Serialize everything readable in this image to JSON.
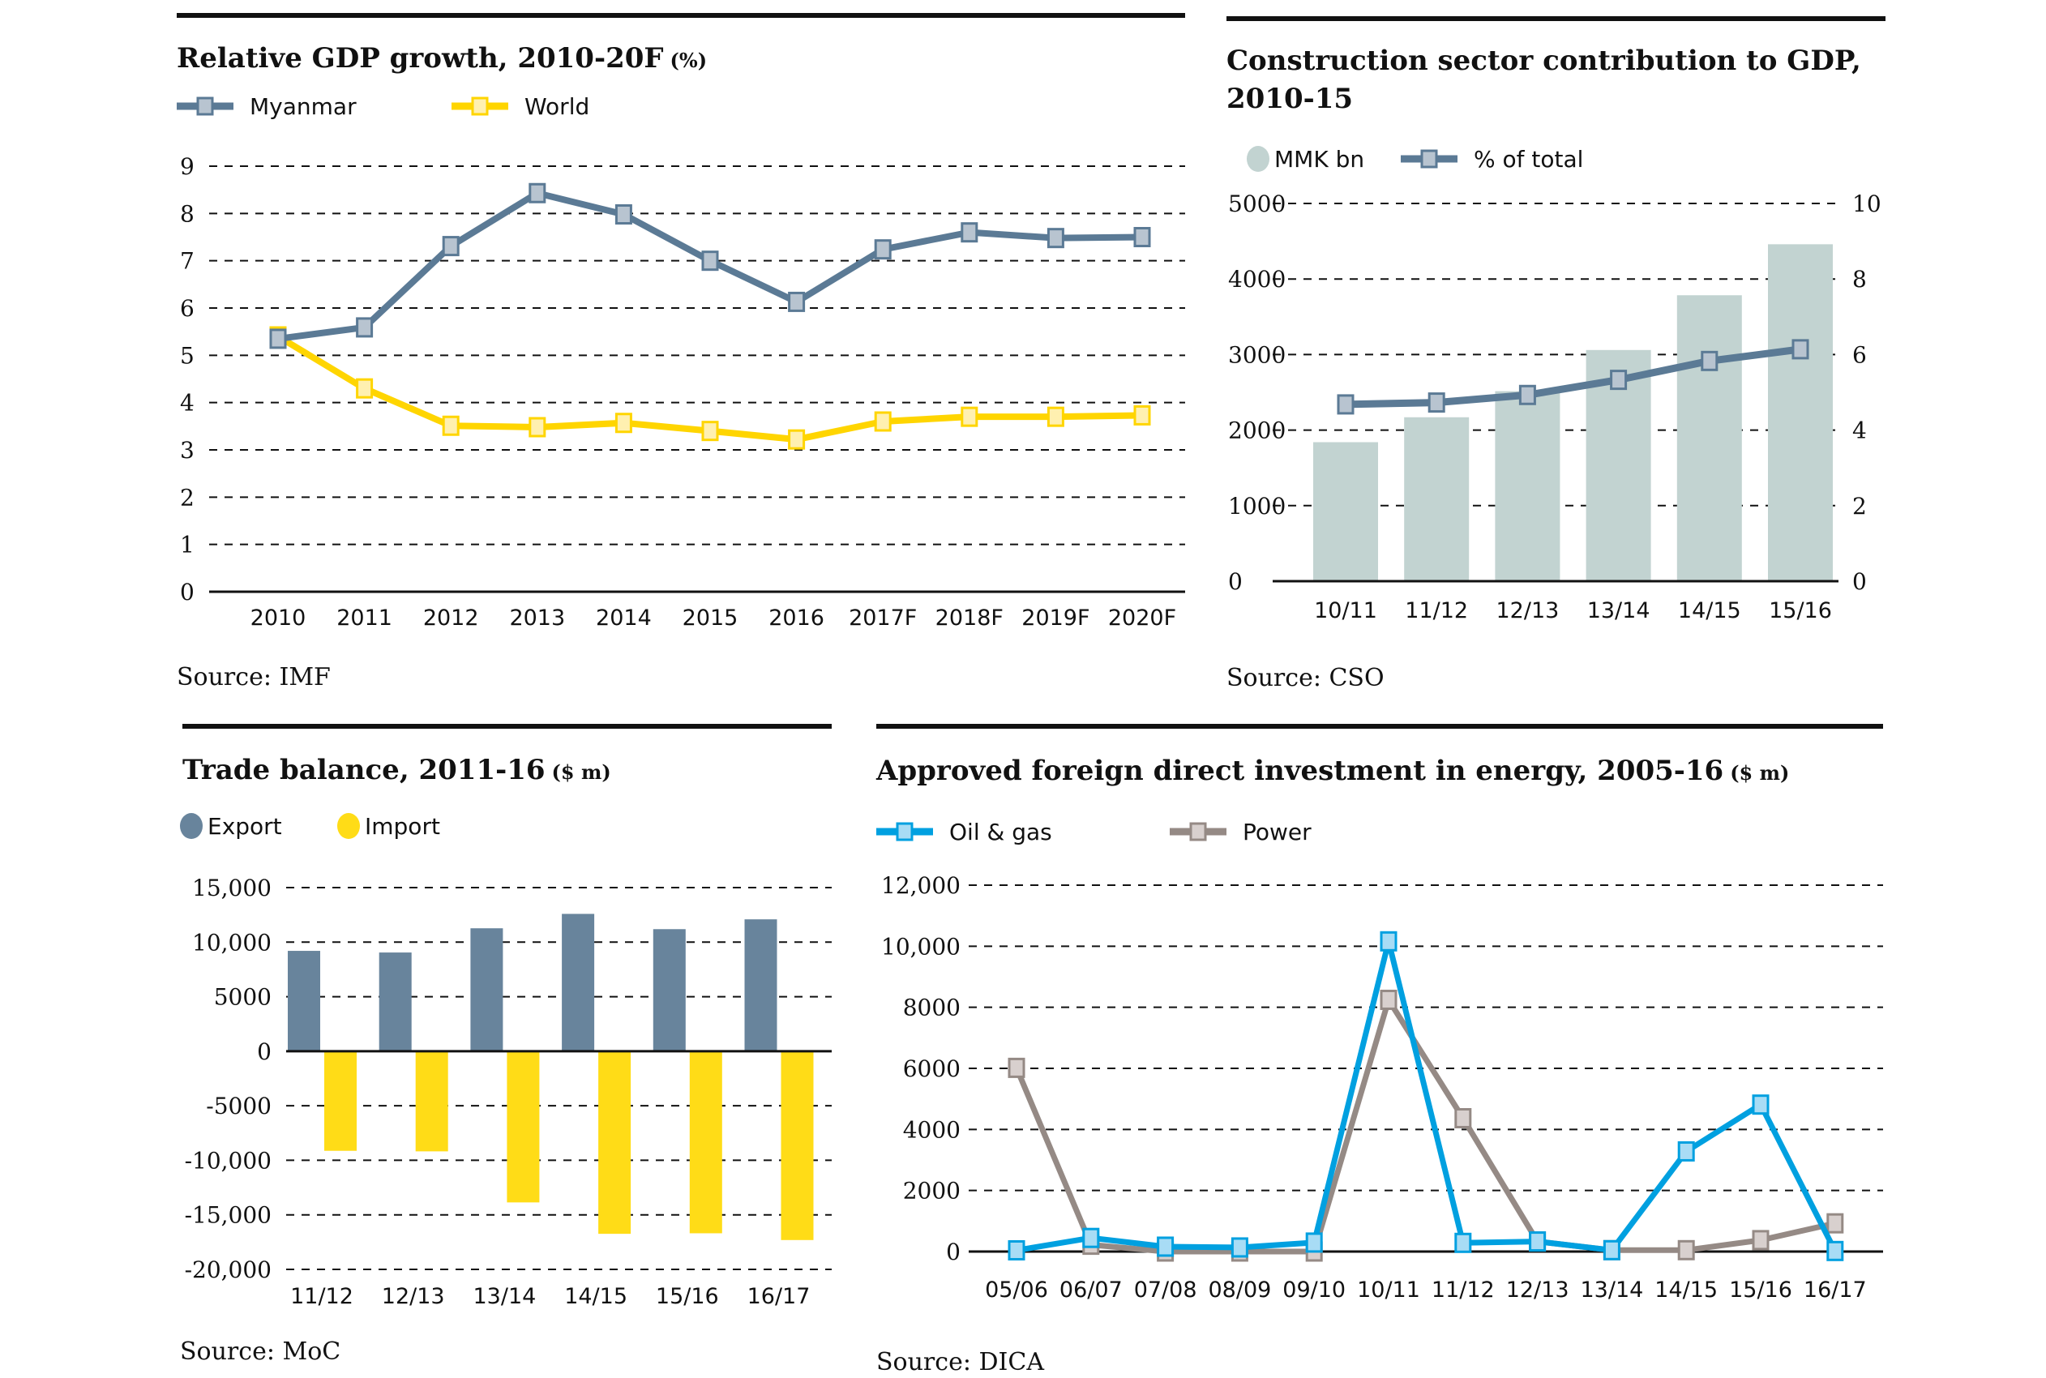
{
  "chart_data": [
    {
      "id": "gdp",
      "type": "line",
      "title": "Relative GDP growth, 2010-20F",
      "title_unit": "(%)",
      "source": "Source: IMF",
      "xlabel": "",
      "ylabel": "",
      "x": [
        "2010",
        "2011",
        "2012",
        "2013",
        "2014",
        "2015",
        "2016",
        "2017F",
        "2018F",
        "2019F",
        "2020F"
      ],
      "yticks": [
        "0",
        "1",
        "2",
        "3",
        "4",
        "5",
        "6",
        "7",
        "8",
        "9"
      ],
      "ylim": [
        0,
        9
      ],
      "grid": true,
      "legend_position": "top-left",
      "series": [
        {
          "name": "Myanmar",
          "color": "#5b7a95",
          "marker_fill": "#b8c4d0",
          "values": [
            5.35,
            5.59,
            7.31,
            8.43,
            7.98,
            7.0,
            6.13,
            7.24,
            7.6,
            7.48,
            7.5
          ]
        },
        {
          "name": "World",
          "color": "#ffd500",
          "marker_fill": "#fff0b0",
          "values": [
            5.4,
            4.3,
            3.51,
            3.48,
            3.57,
            3.4,
            3.22,
            3.6,
            3.7,
            3.7,
            3.73
          ]
        }
      ]
    },
    {
      "id": "construction",
      "type": "bar",
      "title_lines": [
        "Construction sector contribution to GDP,",
        "2010-15"
      ],
      "source": "Source: CSO",
      "categories": [
        "10/11",
        "11/12",
        "12/13",
        "13/14",
        "14/15",
        "15/16"
      ],
      "yticks_left": [
        "0",
        "1000",
        "2000",
        "3000",
        "4000",
        "5000"
      ],
      "yticks_right": [
        "0",
        "2",
        "4",
        "6",
        "8",
        "10"
      ],
      "ylim_left": [
        0,
        5000
      ],
      "ylim_right": [
        0,
        10
      ],
      "grid": true,
      "legend_position": "top-left",
      "series": [
        {
          "name": "MMK bn",
          "kind": "bar",
          "axis": "left",
          "color": "#c2d3d1",
          "values": [
            1840,
            2170,
            2515,
            3060,
            3785,
            4460
          ]
        },
        {
          "name": "% of total",
          "kind": "line",
          "axis": "right",
          "color": "#5b7a95",
          "marker_fill": "#b8c4d0",
          "values": [
            4.68,
            4.73,
            4.93,
            5.33,
            5.83,
            6.14
          ]
        }
      ]
    },
    {
      "id": "trade",
      "type": "bar",
      "title": "Trade balance, 2011-16",
      "title_unit": "($ m)",
      "source": "Source: MoC",
      "categories": [
        "11/12",
        "12/13",
        "13/14",
        "14/15",
        "15/16",
        "16/17"
      ],
      "yticks": [
        "-20,000",
        "-15,000",
        "-10,000",
        "-5000",
        "0",
        "5000",
        "10,000",
        "15,000"
      ],
      "ytick_values": [
        -20000,
        -15000,
        -10000,
        -5000,
        0,
        5000,
        10000,
        15000
      ],
      "ylim": [
        -20000,
        15000
      ],
      "grid": true,
      "legend_position": "top-left",
      "series": [
        {
          "name": "Export",
          "color": "#68849c",
          "values": [
            9200,
            9050,
            11270,
            12590,
            11190,
            12090
          ]
        },
        {
          "name": "Import",
          "color": "#ffdc17",
          "values": [
            -9130,
            -9180,
            -13860,
            -16740,
            -16690,
            -17310
          ]
        }
      ]
    },
    {
      "id": "fdi",
      "type": "line",
      "title": "Approved foreign direct investment in energy, 2005-16",
      "title_unit": "($ m)",
      "source": "Source: DICA",
      "x": [
        "05/06",
        "06/07",
        "07/08",
        "08/09",
        "09/10",
        "10/11",
        "11/12",
        "12/13",
        "13/14",
        "14/15",
        "15/16",
        "16/17"
      ],
      "yticks": [
        "0",
        "2000",
        "4000",
        "6000",
        "8000",
        "10,000",
        "12,000"
      ],
      "ytick_values": [
        0,
        2000,
        4000,
        6000,
        8000,
        10000,
        12000
      ],
      "ylim": [
        0,
        12000
      ],
      "grid": true,
      "legend_position": "top-left",
      "series": [
        {
          "name": "Oil & gas",
          "color": "#00a0e0",
          "marker_fill": "#a8dcf5",
          "values": [
            40,
            446,
            160,
            134,
            294,
            10160,
            284,
            330,
            45,
            3280,
            4813,
            18
          ]
        },
        {
          "name": "Power",
          "color": "#958a85",
          "marker_fill": "#d8d0ce",
          "values": [
            6016,
            223,
            0,
            0,
            0,
            8244,
            4367,
            330,
            45,
            45,
            374,
            924
          ]
        }
      ]
    }
  ]
}
